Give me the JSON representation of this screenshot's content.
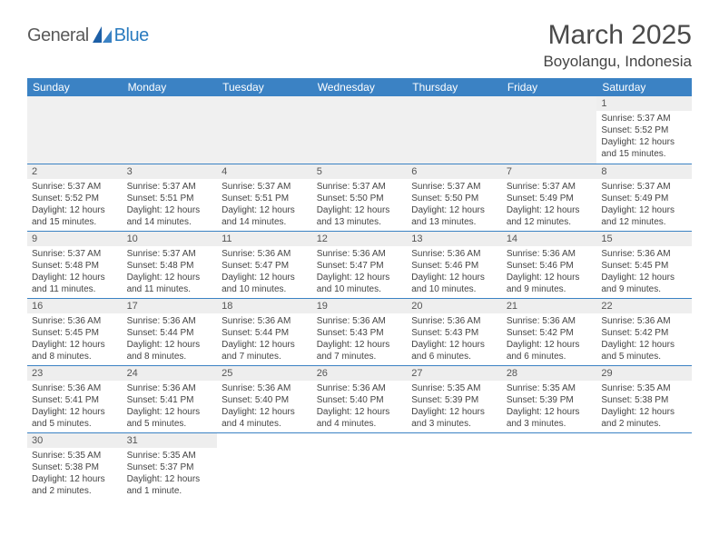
{
  "logo": {
    "text1": "General",
    "text2": "Blue"
  },
  "title": {
    "month": "March 2025",
    "location": "Boyolangu, Indonesia"
  },
  "colors": {
    "header_bg": "#3b82c4",
    "header_text": "#ffffff",
    "daynum_bg": "#eeeeee",
    "row_border": "#3b82c4",
    "logo_gray": "#5a5a5a",
    "logo_blue": "#2a7bbf",
    "text": "#444444"
  },
  "weekdays": [
    "Sunday",
    "Monday",
    "Tuesday",
    "Wednesday",
    "Thursday",
    "Friday",
    "Saturday"
  ],
  "weeks": [
    [
      null,
      null,
      null,
      null,
      null,
      null,
      {
        "n": "1",
        "sr": "Sunrise: 5:37 AM",
        "ss": "Sunset: 5:52 PM",
        "d1": "Daylight: 12 hours",
        "d2": "and 15 minutes."
      }
    ],
    [
      {
        "n": "2",
        "sr": "Sunrise: 5:37 AM",
        "ss": "Sunset: 5:52 PM",
        "d1": "Daylight: 12 hours",
        "d2": "and 15 minutes."
      },
      {
        "n": "3",
        "sr": "Sunrise: 5:37 AM",
        "ss": "Sunset: 5:51 PM",
        "d1": "Daylight: 12 hours",
        "d2": "and 14 minutes."
      },
      {
        "n": "4",
        "sr": "Sunrise: 5:37 AM",
        "ss": "Sunset: 5:51 PM",
        "d1": "Daylight: 12 hours",
        "d2": "and 14 minutes."
      },
      {
        "n": "5",
        "sr": "Sunrise: 5:37 AM",
        "ss": "Sunset: 5:50 PM",
        "d1": "Daylight: 12 hours",
        "d2": "and 13 minutes."
      },
      {
        "n": "6",
        "sr": "Sunrise: 5:37 AM",
        "ss": "Sunset: 5:50 PM",
        "d1": "Daylight: 12 hours",
        "d2": "and 13 minutes."
      },
      {
        "n": "7",
        "sr": "Sunrise: 5:37 AM",
        "ss": "Sunset: 5:49 PM",
        "d1": "Daylight: 12 hours",
        "d2": "and 12 minutes."
      },
      {
        "n": "8",
        "sr": "Sunrise: 5:37 AM",
        "ss": "Sunset: 5:49 PM",
        "d1": "Daylight: 12 hours",
        "d2": "and 12 minutes."
      }
    ],
    [
      {
        "n": "9",
        "sr": "Sunrise: 5:37 AM",
        "ss": "Sunset: 5:48 PM",
        "d1": "Daylight: 12 hours",
        "d2": "and 11 minutes."
      },
      {
        "n": "10",
        "sr": "Sunrise: 5:37 AM",
        "ss": "Sunset: 5:48 PM",
        "d1": "Daylight: 12 hours",
        "d2": "and 11 minutes."
      },
      {
        "n": "11",
        "sr": "Sunrise: 5:36 AM",
        "ss": "Sunset: 5:47 PM",
        "d1": "Daylight: 12 hours",
        "d2": "and 10 minutes."
      },
      {
        "n": "12",
        "sr": "Sunrise: 5:36 AM",
        "ss": "Sunset: 5:47 PM",
        "d1": "Daylight: 12 hours",
        "d2": "and 10 minutes."
      },
      {
        "n": "13",
        "sr": "Sunrise: 5:36 AM",
        "ss": "Sunset: 5:46 PM",
        "d1": "Daylight: 12 hours",
        "d2": "and 10 minutes."
      },
      {
        "n": "14",
        "sr": "Sunrise: 5:36 AM",
        "ss": "Sunset: 5:46 PM",
        "d1": "Daylight: 12 hours",
        "d2": "and 9 minutes."
      },
      {
        "n": "15",
        "sr": "Sunrise: 5:36 AM",
        "ss": "Sunset: 5:45 PM",
        "d1": "Daylight: 12 hours",
        "d2": "and 9 minutes."
      }
    ],
    [
      {
        "n": "16",
        "sr": "Sunrise: 5:36 AM",
        "ss": "Sunset: 5:45 PM",
        "d1": "Daylight: 12 hours",
        "d2": "and 8 minutes."
      },
      {
        "n": "17",
        "sr": "Sunrise: 5:36 AM",
        "ss": "Sunset: 5:44 PM",
        "d1": "Daylight: 12 hours",
        "d2": "and 8 minutes."
      },
      {
        "n": "18",
        "sr": "Sunrise: 5:36 AM",
        "ss": "Sunset: 5:44 PM",
        "d1": "Daylight: 12 hours",
        "d2": "and 7 minutes."
      },
      {
        "n": "19",
        "sr": "Sunrise: 5:36 AM",
        "ss": "Sunset: 5:43 PM",
        "d1": "Daylight: 12 hours",
        "d2": "and 7 minutes."
      },
      {
        "n": "20",
        "sr": "Sunrise: 5:36 AM",
        "ss": "Sunset: 5:43 PM",
        "d1": "Daylight: 12 hours",
        "d2": "and 6 minutes."
      },
      {
        "n": "21",
        "sr": "Sunrise: 5:36 AM",
        "ss": "Sunset: 5:42 PM",
        "d1": "Daylight: 12 hours",
        "d2": "and 6 minutes."
      },
      {
        "n": "22",
        "sr": "Sunrise: 5:36 AM",
        "ss": "Sunset: 5:42 PM",
        "d1": "Daylight: 12 hours",
        "d2": "and 5 minutes."
      }
    ],
    [
      {
        "n": "23",
        "sr": "Sunrise: 5:36 AM",
        "ss": "Sunset: 5:41 PM",
        "d1": "Daylight: 12 hours",
        "d2": "and 5 minutes."
      },
      {
        "n": "24",
        "sr": "Sunrise: 5:36 AM",
        "ss": "Sunset: 5:41 PM",
        "d1": "Daylight: 12 hours",
        "d2": "and 5 minutes."
      },
      {
        "n": "25",
        "sr": "Sunrise: 5:36 AM",
        "ss": "Sunset: 5:40 PM",
        "d1": "Daylight: 12 hours",
        "d2": "and 4 minutes."
      },
      {
        "n": "26",
        "sr": "Sunrise: 5:36 AM",
        "ss": "Sunset: 5:40 PM",
        "d1": "Daylight: 12 hours",
        "d2": "and 4 minutes."
      },
      {
        "n": "27",
        "sr": "Sunrise: 5:35 AM",
        "ss": "Sunset: 5:39 PM",
        "d1": "Daylight: 12 hours",
        "d2": "and 3 minutes."
      },
      {
        "n": "28",
        "sr": "Sunrise: 5:35 AM",
        "ss": "Sunset: 5:39 PM",
        "d1": "Daylight: 12 hours",
        "d2": "and 3 minutes."
      },
      {
        "n": "29",
        "sr": "Sunrise: 5:35 AM",
        "ss": "Sunset: 5:38 PM",
        "d1": "Daylight: 12 hours",
        "d2": "and 2 minutes."
      }
    ],
    [
      {
        "n": "30",
        "sr": "Sunrise: 5:35 AM",
        "ss": "Sunset: 5:38 PM",
        "d1": "Daylight: 12 hours",
        "d2": "and 2 minutes."
      },
      {
        "n": "31",
        "sr": "Sunrise: 5:35 AM",
        "ss": "Sunset: 5:37 PM",
        "d1": "Daylight: 12 hours",
        "d2": "and 1 minute."
      },
      null,
      null,
      null,
      null,
      null
    ]
  ]
}
